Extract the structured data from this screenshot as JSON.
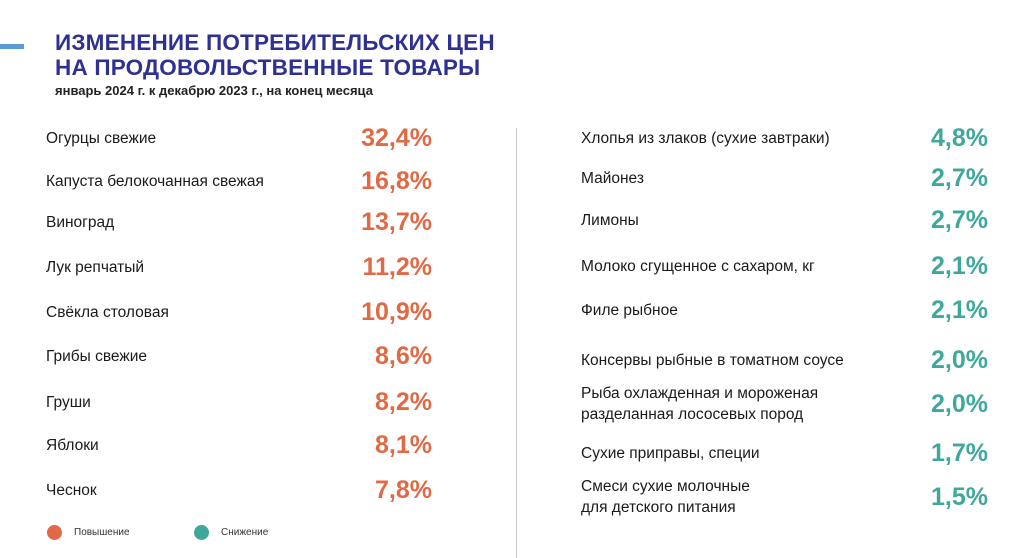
{
  "title_line1": "ИЗМЕНЕНИЕ ПОТРЕБИТЕЛЬСКИХ ЦЕН",
  "title_line2": "НА ПРОДОВОЛЬСТВЕННЫЕ ТОВАРЫ",
  "subtitle": "январь 2024 г. к декабрю 2023 г., на конец месяца",
  "colors": {
    "increase": "#e06a45",
    "decrease": "#40a89a",
    "title": "#2f3192",
    "accent": "#5b9bd5"
  },
  "legend": [
    {
      "label": "Повышение",
      "color": "#e06a45"
    },
    {
      "label": "Снижение",
      "color": "#40a89a"
    }
  ],
  "chart_data": {
    "type": "table",
    "title": "ИЗМЕНЕНИЕ ПОТРЕБИТЕЛЬСКИХ ЦЕН НА ПРОДОВОЛЬСТВЕННЫЕ ТОВАРЫ",
    "subtitle": "январь 2024 г. к декабрю 2023 г., на конец месяца",
    "series": [
      {
        "name": "Повышение",
        "items": [
          {
            "label": "Огурцы свежие",
            "value": 32.4,
            "display": "32,4%"
          },
          {
            "label": "Капуста белокочанная свежая",
            "value": 16.8,
            "display": "16,8%"
          },
          {
            "label": "Виноград",
            "value": 13.7,
            "display": "13,7%"
          },
          {
            "label": "Лук репчатый",
            "value": 11.2,
            "display": "11,2%"
          },
          {
            "label": "Свёкла столовая",
            "value": 10.9,
            "display": "10,9%"
          },
          {
            "label": "Грибы свежие",
            "value": 8.6,
            "display": "8,6%"
          },
          {
            "label": "Груши",
            "value": 8.2,
            "display": "8,2%"
          },
          {
            "label": "Яблоки",
            "value": 8.1,
            "display": "8,1%"
          },
          {
            "label": "Чеснок",
            "value": 7.8,
            "display": "7,8%"
          }
        ]
      },
      {
        "name": "Снижение",
        "items": [
          {
            "label": "Хлопья из злаков (сухие завтраки)",
            "value": 4.8,
            "display": "4,8%"
          },
          {
            "label": "Майонез",
            "value": 2.7,
            "display": "2,7%"
          },
          {
            "label": "Лимоны",
            "value": 2.7,
            "display": "2,7%"
          },
          {
            "label": "Молоко сгущенное с сахаром, кг",
            "value": 2.1,
            "display": "2,1%"
          },
          {
            "label": "Филе рыбное",
            "value": 2.1,
            "display": "2,1%"
          },
          {
            "label": "Консервы рыбные в томатном соусе",
            "value": 2.0,
            "display": "2,0%"
          },
          {
            "label": "Рыба охлажденная и мороженая\nразделанная лососевых пород",
            "value": 2.0,
            "display": "2,0%"
          },
          {
            "label": "Сухие приправы, специи",
            "value": 1.7,
            "display": "1,7%"
          },
          {
            "label": "Смеси сухие молочные\nдля детского питания",
            "value": 1.5,
            "display": "1,5%"
          }
        ]
      }
    ]
  }
}
